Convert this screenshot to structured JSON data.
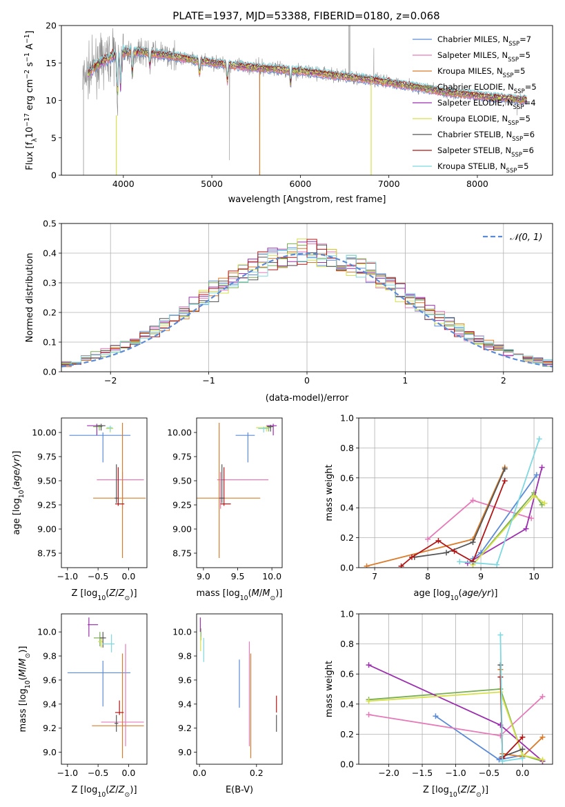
{
  "figure_title": "PLATE=1937, MJD=53388, FIBERID=0180, z=0.068",
  "models": [
    {
      "name": "Chabrier MILES",
      "nssp": "7",
      "color": "#5b8ad6"
    },
    {
      "name": "Salpeter MILES",
      "nssp": "5",
      "color": "#e67ab8"
    },
    {
      "name": "Kroupa MILES",
      "nssp": "5",
      "color": "#d97b2b"
    },
    {
      "name": "Chabrier ELODIE",
      "nssp": "5",
      "color": "#7aae52"
    },
    {
      "name": "Salpeter ELODIE",
      "nssp": "4",
      "color": "#9b2fae"
    },
    {
      "name": "Kroupa ELODIE",
      "nssp": "5",
      "color": "#d6e04a"
    },
    {
      "name": "Chabrier STELIB",
      "nssp": "6",
      "color": "#555555"
    },
    {
      "name": "Salpeter STELIB",
      "nssp": "6",
      "color": "#b01515"
    },
    {
      "name": "Kroupa STELIB",
      "nssp": "5",
      "color": "#7fd8e0"
    }
  ],
  "chart_data": [
    {
      "id": "spectrum",
      "type": "line",
      "title": "PLATE=1937, MJD=53388, FIBERID=0180, z=0.068",
      "xlabel": "wavelength [Angstrom, rest frame]",
      "ylabel": "Flux [f",
      "ylabel_parts": [
        "Flux [f",
        "λ",
        "10",
        "−17",
        " erg cm",
        "−2",
        " s",
        "−1",
        " A",
        "−1",
        "]"
      ],
      "xlim": [
        3300,
        8850
      ],
      "ylim": [
        0,
        20
      ],
      "xticks": [
        4000,
        5000,
        6000,
        7000,
        8000
      ],
      "yticks": [
        0,
        5,
        10,
        15,
        20
      ],
      "x": [
        3550,
        3700,
        3850,
        4000,
        4150,
        4300,
        4500,
        4700,
        4900,
        5100,
        5300,
        5500,
        5700,
        5900,
        6100,
        6300,
        6500,
        6700,
        6900,
        7100,
        7300,
        7500,
        7700,
        7900,
        8100,
        8300,
        8500
      ],
      "continuum": [
        13.0,
        14.8,
        15.8,
        16.4,
        16.6,
        16.3,
        16.0,
        15.6,
        15.2,
        14.9,
        14.6,
        14.4,
        14.2,
        14.0,
        13.8,
        13.5,
        13.2,
        12.9,
        12.6,
        12.2,
        11.8,
        11.4,
        11.0,
        10.8,
        10.5,
        10.3,
        10.1
      ],
      "absorption_lines": [
        {
          "x": 3933,
          "depth": 6.0
        },
        {
          "x": 3968,
          "depth": 5.0
        },
        {
          "x": 4101,
          "depth": 3.5
        },
        {
          "x": 4300,
          "depth": 2.0
        },
        {
          "x": 4861,
          "depth": 2.0
        },
        {
          "x": 5175,
          "depth": 2.5
        },
        {
          "x": 5890,
          "depth": 2.0
        }
      ],
      "observed_spikes": [
        {
          "x": 5200,
          "y": 2.0
        },
        {
          "x": 5540,
          "y": 0.0
        },
        {
          "x": 6560,
          "y": 20.0
        },
        {
          "x": 6800,
          "y": 0.0
        },
        {
          "x": 6830,
          "y": 17.0
        },
        {
          "x": 8450,
          "y": 8.0
        }
      ],
      "legend": "upper right"
    },
    {
      "id": "residuals",
      "type": "histogram",
      "xlabel": "(data-model)/error",
      "ylabel": "Normed distribution",
      "xlim": [
        -2.5,
        2.5
      ],
      "ylim": [
        0,
        0.5
      ],
      "xticks": [
        -2,
        -1,
        0,
        1,
        2
      ],
      "yticks": [
        0.0,
        0.1,
        0.2,
        0.3,
        0.4,
        0.5
      ],
      "bin_width": 0.1,
      "bin_start": -2.5,
      "reference_curve": {
        "label": "𝒩(0, 1)",
        "mean": 0,
        "sigma": 1,
        "color": "#5b8ad6"
      },
      "grid": true,
      "legend": "upper right"
    },
    {
      "id": "age_vs_Z",
      "type": "errorbar",
      "xlabel": "Z [log",
      "ylabel": "age  [log",
      "xlim": [
        -1.1,
        0.3
      ],
      "ylim": [
        8.6,
        10.15
      ],
      "xticks": [
        -1.0,
        -0.5,
        0.0
      ],
      "yticks": [
        8.75,
        9.0,
        9.25,
        9.5,
        9.75,
        10.0
      ],
      "points": [
        {
          "model": 0,
          "x": -0.42,
          "xerr": [
            0.55,
            0.45
          ],
          "y": 9.97,
          "yerr": [
            0.28,
            0.03
          ]
        },
        {
          "model": 1,
          "x": -0.1,
          "xerr": [
            0.42,
            0.35
          ],
          "y": 9.51,
          "yerr": [
            0.3,
            0.08
          ]
        },
        {
          "model": 2,
          "x": -0.1,
          "xerr": [
            0.48,
            0.38
          ],
          "y": 9.32,
          "yerr": [
            0.62,
            0.78
          ]
        },
        {
          "model": 3,
          "x": -0.48,
          "xerr": [
            0.1,
            0.05
          ],
          "y": 10.06,
          "yerr": [
            0.04,
            0.02
          ]
        },
        {
          "model": 4,
          "x": -0.52,
          "xerr": [
            0.16,
            0.1
          ],
          "y": 10.07,
          "yerr": [
            0.1,
            0.02
          ]
        },
        {
          "model": 5,
          "x": -0.3,
          "xerr": [
            0.07,
            0.05
          ],
          "y": 10.04,
          "yerr": [
            0.04,
            0.02
          ]
        },
        {
          "model": 6,
          "x": -0.45,
          "xerr": [
            0.08,
            0.07
          ],
          "y": 10.07,
          "yerr": [
            0.05,
            0.02
          ]
        },
        {
          "model": 7,
          "x": -0.17,
          "xerr": [
            0.05,
            0.1
          ],
          "y": 9.26,
          "yerr": [
            0.02,
            0.38
          ]
        },
        {
          "model": 8,
          "x": -0.3,
          "xerr": [
            0.06,
            0.04
          ],
          "y": 10.05,
          "yerr": [
            0.04,
            0.02
          ]
        },
        {
          "model": 6,
          "x": -0.2,
          "xerr": [
            0.03,
            0.03
          ],
          "y": 9.32,
          "yerr": [
            0.05,
            0.35
          ]
        }
      ]
    },
    {
      "id": "age_vs_mass",
      "type": "errorbar",
      "xlabel": "mass [log",
      "xlim": [
        8.9,
        10.15
      ],
      "ylim": [
        8.6,
        10.15
      ],
      "xticks": [
        9.0,
        9.5,
        10.0
      ],
      "yticks": [
        8.75,
        9.0,
        9.25,
        9.5,
        9.75,
        10.0
      ],
      "points": [
        {
          "model": 0,
          "x": 9.65,
          "xerr": [
            0.18,
            0.1
          ],
          "y": 9.97,
          "yerr": [
            0.28,
            0.03
          ]
        },
        {
          "model": 1,
          "x": 9.25,
          "xerr": [
            0.05,
            0.7
          ],
          "y": 9.51,
          "yerr": [
            0.3,
            0.08
          ]
        },
        {
          "model": 2,
          "x": 9.23,
          "xerr": [
            0.35,
            0.6
          ],
          "y": 9.32,
          "yerr": [
            0.62,
            0.78
          ]
        },
        {
          "model": 3,
          "x": 9.95,
          "xerr": [
            0.07,
            0.04
          ],
          "y": 10.05,
          "yerr": [
            0.04,
            0.02
          ]
        },
        {
          "model": 4,
          "x": 10.02,
          "xerr": [
            0.1,
            0.05
          ],
          "y": 10.07,
          "yerr": [
            0.1,
            0.02
          ]
        },
        {
          "model": 5,
          "x": 9.92,
          "xerr": [
            0.15,
            0.03
          ],
          "y": 10.05,
          "yerr": [
            0.04,
            0.02
          ]
        },
        {
          "model": 6,
          "x": 9.98,
          "xerr": [
            0.05,
            0.04
          ],
          "y": 10.06,
          "yerr": [
            0.05,
            0.02
          ]
        },
        {
          "model": 7,
          "x": 9.3,
          "xerr": [
            0.05,
            0.1
          ],
          "y": 9.26,
          "yerr": [
            0.02,
            0.38
          ]
        },
        {
          "model": 8,
          "x": 9.88,
          "xerr": [
            0.08,
            0.06
          ],
          "y": 10.04,
          "yerr": [
            0.04,
            0.02
          ]
        },
        {
          "model": 6,
          "x": 9.27,
          "xerr": [
            0.04,
            0.04
          ],
          "y": 9.32,
          "yerr": [
            0.05,
            0.35
          ]
        }
      ]
    },
    {
      "id": "weight_vs_age",
      "type": "line",
      "xlabel": "age  [log",
      "ylabel": "mass weight",
      "xlim": [
        6.7,
        10.35
      ],
      "ylim": [
        0,
        1.0
      ],
      "xticks": [
        7,
        8,
        9,
        10
      ],
      "yticks": [
        0.0,
        0.2,
        0.4,
        0.6,
        0.8,
        1.0
      ],
      "grid": true,
      "series": [
        {
          "model": 0,
          "x": [
            8.85,
            9.0,
            10.05
          ],
          "y": [
            0.06,
            0.1,
            0.62
          ]
        },
        {
          "model": 1,
          "x": [
            8.0,
            8.85,
            9.95
          ],
          "y": [
            0.19,
            0.45,
            0.33
          ]
        },
        {
          "model": 2,
          "x": [
            6.85,
            8.85,
            9.45
          ],
          "y": [
            0.01,
            0.19,
            0.67
          ]
        },
        {
          "model": 3,
          "x": [
            8.85,
            10.0,
            10.15
          ],
          "y": [
            0.02,
            0.5,
            0.42
          ]
        },
        {
          "model": 4,
          "x": [
            8.75,
            9.85,
            10.15
          ],
          "y": [
            0.03,
            0.26,
            0.67
          ]
        },
        {
          "model": 5,
          "x": [
            8.85,
            10.0,
            10.2
          ],
          "y": [
            0.02,
            0.48,
            0.43
          ]
        },
        {
          "model": 6,
          "x": [
            7.75,
            8.35,
            8.85,
            9.45
          ],
          "y": [
            0.07,
            0.1,
            0.17,
            0.66
          ]
        },
        {
          "model": 7,
          "x": [
            7.5,
            7.7,
            8.2,
            8.5,
            8.85,
            9.45
          ],
          "y": [
            0.01,
            0.07,
            0.18,
            0.11,
            0.04,
            0.58
          ]
        },
        {
          "model": 8,
          "x": [
            8.6,
            9.3,
            10.1
          ],
          "y": [
            0.04,
            0.02,
            0.86
          ]
        }
      ]
    },
    {
      "id": "mass_vs_Z",
      "type": "errorbar",
      "xlabel": "Z [log",
      "ylabel": "mass [log",
      "xlim": [
        -1.1,
        0.3
      ],
      "ylim": [
        8.9,
        10.15
      ],
      "xticks": [
        -1.0,
        -0.5,
        0.0
      ],
      "yticks": [
        9.0,
        9.2,
        9.4,
        9.6,
        9.8,
        10.0
      ],
      "points": [
        {
          "model": 0,
          "x": -0.42,
          "xerr": [
            0.58,
            0.45
          ],
          "y": 9.66,
          "yerr": [
            0.28,
            0.1
          ]
        },
        {
          "model": 1,
          "x": -0.05,
          "xerr": [
            0.4,
            0.3
          ],
          "y": 9.25,
          "yerr": [
            0.2,
            0.65
          ]
        },
        {
          "model": 2,
          "x": -0.1,
          "xerr": [
            0.5,
            0.35
          ],
          "y": 9.22,
          "yerr": [
            0.27,
            0.6
          ]
        },
        {
          "model": 3,
          "x": -0.47,
          "xerr": [
            0.1,
            0.07
          ],
          "y": 9.95,
          "yerr": [
            0.07,
            0.05
          ]
        },
        {
          "model": 4,
          "x": -0.65,
          "xerr": [
            0.02,
            0.15
          ],
          "y": 10.06,
          "yerr": [
            0.1,
            0.06
          ]
        },
        {
          "model": 5,
          "x": -0.45,
          "xerr": [
            0.05,
            0.03
          ],
          "y": 9.92,
          "yerr": [
            0.05,
            0.03
          ]
        },
        {
          "model": 6,
          "x": -0.42,
          "xerr": [
            0.05,
            0.05
          ],
          "y": 9.95,
          "yerr": [
            0.08,
            0.05
          ]
        },
        {
          "model": 7,
          "x": -0.15,
          "xerr": [
            0.07,
            0.07
          ],
          "y": 9.33,
          "yerr": [
            0.02,
            0.1
          ]
        },
        {
          "model": 8,
          "x": -0.28,
          "xerr": [
            0.15,
            0.05
          ],
          "y": 9.9,
          "yerr": [
            0.07,
            0.08
          ]
        },
        {
          "model": 6,
          "x": -0.2,
          "xerr": [
            0.03,
            0.03
          ],
          "y": 9.24,
          "yerr": [
            0.07,
            0.07
          ]
        }
      ]
    },
    {
      "id": "mass_vs_EBV",
      "type": "errorbar",
      "xlabel": "E(B-V)",
      "xlim": [
        -0.01,
        0.29
      ],
      "ylim": [
        8.9,
        10.15
      ],
      "xticks": [
        0.0,
        0.2
      ],
      "yticks": [
        9.0,
        9.2,
        9.4,
        9.6,
        9.8,
        10.0
      ],
      "points": [
        {
          "model": 0,
          "x": 0.14,
          "xerr": [
            0,
            0
          ],
          "y": 9.57,
          "yerr": [
            0.2,
            0.2
          ]
        },
        {
          "model": 1,
          "x": 0.175,
          "xerr": [
            0,
            0
          ],
          "y": 9.5,
          "yerr": [
            0.45,
            0.42
          ]
        },
        {
          "model": 2,
          "x": 0.18,
          "xerr": [
            0,
            0
          ],
          "y": 9.4,
          "yerr": [
            0.45,
            0.42
          ]
        },
        {
          "model": 3,
          "x": 0.005,
          "xerr": [
            0,
            0
          ],
          "y": 9.98,
          "yerr": [
            0.05,
            0.05
          ]
        },
        {
          "model": 4,
          "x": 0.003,
          "xerr": [
            0,
            0
          ],
          "y": 10.06,
          "yerr": [
            0.06,
            0.06
          ]
        },
        {
          "model": 5,
          "x": 0.004,
          "xerr": [
            0,
            0
          ],
          "y": 9.9,
          "yerr": [
            0.06,
            0.06
          ]
        },
        {
          "model": 6,
          "x": 0.27,
          "xerr": [
            0,
            0
          ],
          "y": 9.24,
          "yerr": [
            0.07,
            0.07
          ]
        },
        {
          "model": 7,
          "x": 0.27,
          "xerr": [
            0,
            0
          ],
          "y": 9.4,
          "yerr": [
            0.07,
            0.07
          ]
        },
        {
          "model": 8,
          "x": 0.015,
          "xerr": [
            0,
            0
          ],
          "y": 9.85,
          "yerr": [
            0.1,
            0.1
          ]
        }
      ]
    },
    {
      "id": "weight_vs_Z",
      "type": "line",
      "xlabel": "Z [log",
      "ylabel": "mass weight",
      "xlim": [
        -2.45,
        0.45
      ],
      "ylim": [
        0,
        1.0
      ],
      "xticks": [
        -2.0,
        -1.5,
        -1.0,
        -0.5,
        0.0
      ],
      "yticks": [
        0.0,
        0.2,
        0.4,
        0.6,
        0.8,
        1.0
      ],
      "grid": true,
      "series": [
        {
          "model": 0,
          "x": [
            -1.3,
            -0.35,
            0.0
          ],
          "y": [
            0.32,
            0.03,
            0.06
          ]
        },
        {
          "model": 1,
          "x": [
            -2.3,
            -0.33,
            0.3
          ],
          "y": [
            0.33,
            0.19,
            0.45
          ]
        },
        {
          "model": 2,
          "x": [
            -0.33,
            -0.3,
            0.0,
            0.3
          ],
          "y": [
            0.63,
            0.07,
            0.05,
            0.18
          ]
        },
        {
          "model": 3,
          "x": [
            -2.3,
            -0.33,
            0.0,
            0.3
          ],
          "y": [
            0.43,
            0.5,
            0.06,
            0.02
          ]
        },
        {
          "model": 4,
          "x": [
            -2.3,
            -0.33,
            0.3
          ],
          "y": [
            0.66,
            0.26,
            0.02
          ]
        },
        {
          "model": 5,
          "x": [
            -2.3,
            -0.33,
            0.0,
            0.3
          ],
          "y": [
            0.42,
            0.48,
            0.06,
            0.03
          ]
        },
        {
          "model": 6,
          "x": [
            -0.33,
            -0.3,
            0.0
          ],
          "y": [
            0.66,
            0.05,
            0.1
          ]
        },
        {
          "model": 7,
          "x": [
            -0.33,
            -0.3,
            0.0
          ],
          "y": [
            0.58,
            0.04,
            0.18
          ]
        },
        {
          "model": 8,
          "x": [
            -0.33,
            -0.3,
            0.0
          ],
          "y": [
            0.86,
            0.02,
            0.04
          ]
        }
      ]
    }
  ]
}
